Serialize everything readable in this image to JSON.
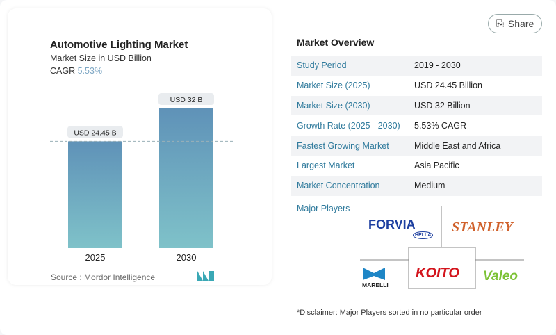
{
  "share_label": "Share",
  "chart_data": {
    "type": "bar",
    "title": "Automotive Lighting Market",
    "subtitle": "Market Size in USD Billion",
    "cagr_label": "CAGR",
    "cagr_value": "5.53%",
    "categories": [
      "2025",
      "2030"
    ],
    "values": [
      24.45,
      32
    ],
    "data_labels": [
      "USD 24.45 B",
      "USD 32 B"
    ],
    "ylim": [
      0,
      32
    ],
    "grid": false,
    "colors": {
      "top": "#5f92b8",
      "bottom": "#7fc2c9"
    }
  },
  "source": "Source :  Mordor Intelligence",
  "overview": {
    "title": "Market Overview",
    "rows": [
      {
        "label": "Study Period",
        "value": "2019 - 2030"
      },
      {
        "label": "Market Size (2025)",
        "value": "USD 24.45 Billion"
      },
      {
        "label": "Market Size (2030)",
        "value": "USD 32 Billion"
      },
      {
        "label": "Growth Rate (2025 - 2030)",
        "value": "5.53% CAGR"
      },
      {
        "label": "Fastest Growing Market",
        "value": "Middle East and Africa"
      },
      {
        "label": "Largest Market",
        "value": "Asia Pacific"
      },
      {
        "label": "Market Concentration",
        "value": "Medium"
      }
    ],
    "major_players_label": "Major Players",
    "players": [
      "FORVIA",
      "HELLA",
      "STANLEY",
      "MARELLI",
      "KOITO",
      "Valeo"
    ],
    "disclaimer": "*Disclaimer: Major Players sorted in no particular order"
  }
}
